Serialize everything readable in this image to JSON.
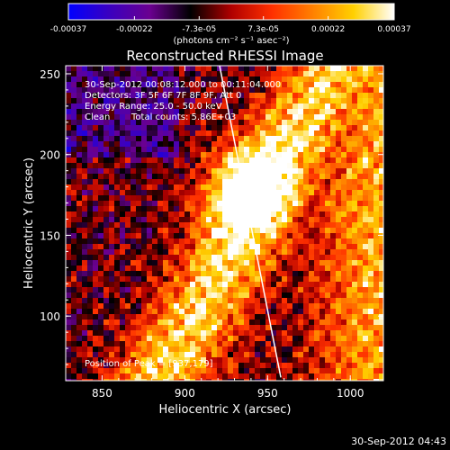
{
  "colorbar": {
    "tick_labels": [
      "-0.00037",
      "-0.00022",
      "-7.3e-05",
      "7.3e-05",
      "0.00022",
      "0.00037"
    ],
    "tick_values": [
      -0.00037,
      -0.00022,
      -7.3e-05,
      7.3e-05,
      0.00022,
      0.00037
    ],
    "units": "(photons cm⁻² s⁻¹ asec⁻²)",
    "range": [
      -0.00037,
      0.00037
    ],
    "colors": [
      "#0000ff",
      "#3a00c0",
      "#6a0090",
      "#000000",
      "#b00000",
      "#ff3000",
      "#ff8000",
      "#ffd000",
      "#ffffff"
    ]
  },
  "plot": {
    "title": "Reconstructed RHESSI Image",
    "x_axis": {
      "label": "Heliocentric X (arcsec)",
      "range": [
        828,
        1020
      ],
      "ticks": [
        850,
        900,
        950,
        1000
      ],
      "tick_labels": [
        "850",
        "900",
        "950",
        "1000"
      ]
    },
    "y_axis": {
      "label": "Heliocentric Y (arcsec)",
      "range": [
        60,
        255
      ],
      "ticks": [
        100,
        150,
        200,
        250
      ],
      "tick_labels": [
        "100",
        "150",
        "200",
        "250"
      ]
    },
    "info": {
      "time_range": "30-Sep-2012 00:08:12.000 to 00:11:04.000",
      "detectors": "Detectors: 3F 5F 6F 7F 8F 9F, Att 0",
      "energy": "Energy Range: 25.0 - 50.0 keV",
      "method": "Clean",
      "counts": "Total counts: 5.86E+03"
    },
    "peak_text": "Position of Peak = [937,179]",
    "peak_position": [
      937,
      179
    ],
    "limb_line": {
      "points": [
        [
          921,
          255
        ],
        [
          958,
          62
        ]
      ],
      "color": "#ffffff"
    }
  },
  "footer": {
    "timestamp": "30-Sep-2012 04:43"
  }
}
